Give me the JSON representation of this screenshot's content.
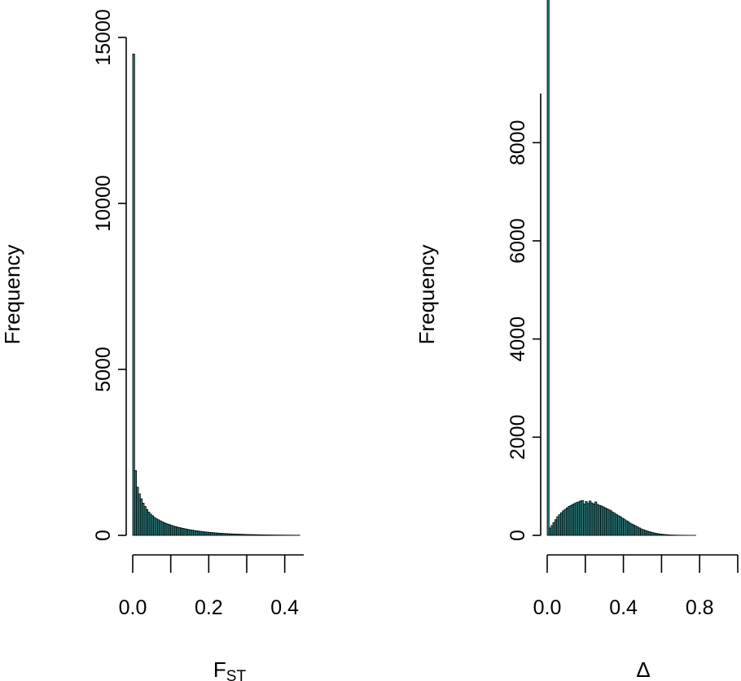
{
  "colors": {
    "bar_fill": "#2a7f7f",
    "bar_edge": "#000000",
    "axis": "#000000",
    "background": "#ffffff"
  },
  "chart_data": [
    {
      "type": "bar",
      "subtype": "histogram",
      "xlabel": "F",
      "xlabel_subscript": "ST",
      "ylabel": "Frequency",
      "xlim": [
        0,
        0.45
      ],
      "ylim": [
        0,
        15000
      ],
      "x_ticks": [
        0.0,
        0.1,
        0.2,
        0.3,
        0.4
      ],
      "x_tick_labels": [
        "0.0",
        "0.2",
        "0.4"
      ],
      "x_tick_label_values": [
        0.0,
        0.2,
        0.4
      ],
      "y_ticks": [
        0,
        5000,
        10000,
        15000
      ],
      "y_tick_labels": [
        "0",
        "5000",
        "10000",
        "15000"
      ],
      "bin_width": 0.005,
      "bins_start": 0.0,
      "values": [
        14500,
        1950,
        1450,
        1250,
        1100,
        970,
        870,
        780,
        700,
        640,
        590,
        540,
        500,
        470,
        440,
        410,
        380,
        360,
        340,
        320,
        300,
        280,
        265,
        250,
        235,
        222,
        210,
        198,
        186,
        175,
        165,
        155,
        146,
        138,
        130,
        122,
        115,
        108,
        102,
        96,
        90,
        85,
        80,
        75,
        70,
        66,
        62,
        58,
        55,
        52,
        48,
        45,
        42,
        40,
        37,
        35,
        33,
        31,
        29,
        27,
        25,
        24,
        22,
        21,
        20,
        18,
        17,
        16,
        15,
        14,
        13,
        12,
        11,
        10,
        10,
        9,
        8,
        8,
        7,
        7,
        6,
        6,
        5,
        5,
        5,
        4,
        4,
        4
      ],
      "grid": false,
      "legend": "none"
    },
    {
      "type": "bar",
      "subtype": "histogram",
      "xlabel": "Δ",
      "ylabel": "Frequency",
      "xlim": [
        0,
        1.0
      ],
      "ylim": [
        0,
        9000
      ],
      "x_ticks": [
        0.0,
        0.2,
        0.4,
        0.6,
        0.8,
        1.0
      ],
      "x_tick_labels": [
        "0.0",
        "0.4",
        "0.8"
      ],
      "x_tick_label_values": [
        0.0,
        0.4,
        0.8
      ],
      "y_ticks": [
        0,
        2000,
        4000,
        6000,
        8000
      ],
      "y_tick_labels": [
        "0",
        "2000",
        "4000",
        "6000",
        "8000"
      ],
      "bin_width": 0.01,
      "bins_start": 0.0,
      "values": [
        10950,
        150,
        200,
        260,
        320,
        380,
        420,
        460,
        500,
        530,
        560,
        590,
        610,
        630,
        650,
        670,
        680,
        700,
        710,
        640,
        690,
        650,
        700,
        660,
        640,
        680,
        630,
        610,
        600,
        580,
        560,
        540,
        520,
        500,
        470,
        450,
        420,
        400,
        380,
        350,
        330,
        300,
        280,
        250,
        230,
        210,
        190,
        170,
        150,
        130,
        115,
        100,
        88,
        75,
        65,
        55,
        46,
        38,
        32,
        26,
        21,
        17,
        14,
        11,
        9,
        7,
        6,
        5,
        4,
        3,
        3,
        2,
        2,
        2,
        1,
        1,
        1,
        1
      ],
      "grid": false,
      "legend": "none"
    }
  ]
}
